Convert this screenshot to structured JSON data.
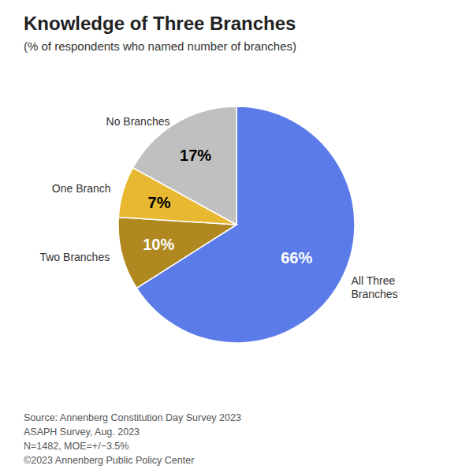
{
  "chart_data": {
    "type": "pie",
    "title": "Knowledge of Three Branches",
    "subtitle": "(% of respondents who named number of branches)",
    "categories": [
      "All Three\nBranches",
      "Two Branches",
      "One Branch",
      "No Branches"
    ],
    "values": [
      66,
      10,
      7,
      17
    ],
    "value_labels": [
      "66%",
      "10%",
      "7%",
      "17%"
    ],
    "colors": [
      "#5B7BE8",
      "#B08820",
      "#E8B830",
      "#C0C0C0"
    ],
    "data_labels": true,
    "annotations": [
      "Source: Annenberg Constitution Day Survey 2023",
      "ASAPH Survey, Aug. 2023",
      "N=1482, MOE=+/−3.5%",
      "©2023 Annenberg Public Policy Center"
    ]
  }
}
